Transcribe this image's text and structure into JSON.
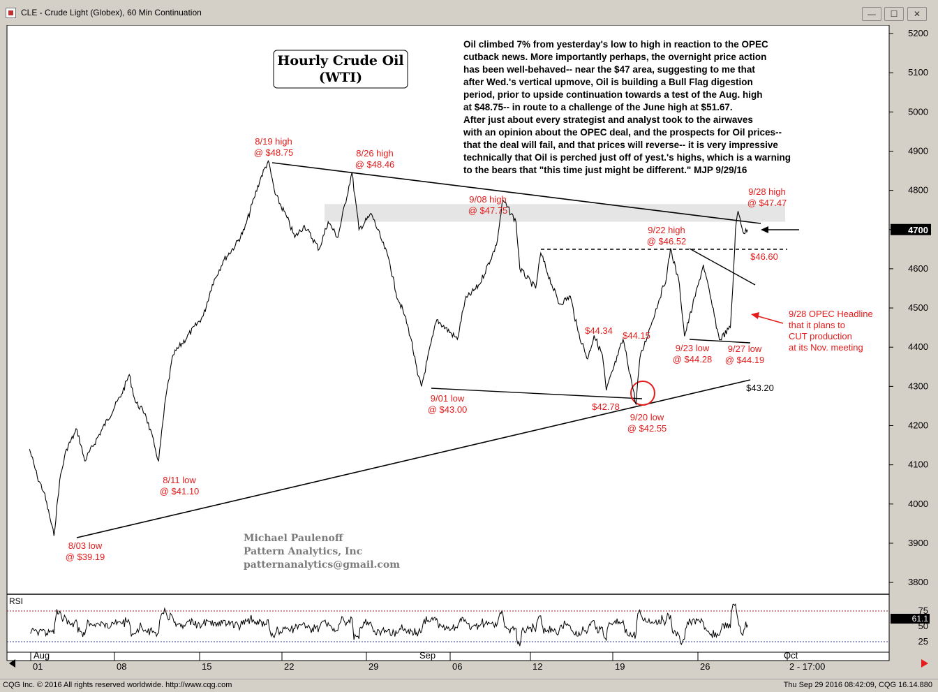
{
  "window": {
    "title": "CLE - Crude Light (Globex), 60 Min Continuation",
    "controls": {
      "minimize": "—",
      "maximize": "☐",
      "close": "✕"
    }
  },
  "footer": {
    "left": "CQG Inc. © 2016 All rights reserved worldwide. http://www.cqg.com",
    "right": "Thu Sep 29 2016 08:42:09, CQG 16.14.880"
  },
  "colors": {
    "annotation": "#e31b1b",
    "rsi_ref": "#9a1a2a",
    "rsi_ref_low": "#3a3a9a",
    "resistance_zone": "#d0d0d0"
  },
  "chart_data": {
    "type": "line",
    "title_box": [
      "Hourly Crude Oil",
      "(WTI)"
    ],
    "commentary": [
      "    Oil climbed 7% from yesterday's low to high in reaction to the OPEC",
      "cutback news. More importantly perhaps, the overnight price action",
      "has been well-behaved-- near the $47 area, suggesting to me that",
      "after Wed.'s vertical upmove, Oil is building a Bull Flag digestion",
      "period, prior to upside continuation towards a test of the Aug. high",
      "at $48.75-- in route to a challenge of the June high at $51.67.",
      "    After just about every strategist and analyst took to the airwaves",
      "with an opinion about the OPEC deal, and the prospects for Oil prices--",
      "that the deal will fail, and that prices will reverse-- it is very impressive",
      "technically that Oil is perched just off of yest.'s highs, which is a warning",
      "to the bears that \"this time just might be different.\"  MJP 9/29/16"
    ],
    "signature": [
      "Michael Paulenoff",
      "Pattern Analytics, Inc",
      "patternanalytics@gmail.com"
    ],
    "y_axis": {
      "range": [
        3750,
        5250
      ],
      "ticks": [
        3800,
        3900,
        4000,
        4100,
        4200,
        4300,
        4400,
        4500,
        4600,
        4700,
        4800,
        4900,
        5000,
        5100,
        5200
      ],
      "last_price_box": "4700"
    },
    "x_axis": {
      "month_labels": [
        "Aug",
        "Sep",
        "Oct"
      ],
      "day_labels": [
        "01",
        "08",
        "15",
        "22",
        "29",
        "06",
        "12",
        "19",
        "26",
        "2 - 17:00"
      ]
    },
    "rsi": {
      "label": "RSI",
      "ticks": [
        25,
        50,
        75
      ],
      "value_box": "61.1",
      "ref_high": 70,
      "ref_low": 30
    },
    "series": [
      {
        "points": [
          [
            "Aug 01 08:00",
            4140
          ],
          [
            "Aug 01 20:00",
            4070
          ],
          [
            "Aug 02 12:00",
            4030
          ],
          [
            "Aug 02 22:00",
            3960
          ],
          [
            "Aug 03 09:00",
            3919
          ],
          [
            "Aug 03 18:00",
            4060
          ],
          [
            "Aug 04 10:00",
            4140
          ],
          [
            "Aug 05 08:00",
            4190
          ],
          [
            "Aug 05 20:00",
            4110
          ],
          [
            "Aug 08 10:00",
            4280
          ],
          [
            "Aug 08 22:00",
            4330
          ],
          [
            "Aug 09 12:00",
            4260
          ],
          [
            "Aug 10 08:00",
            4230
          ],
          [
            "Aug 10 22:00",
            4150
          ],
          [
            "Aug 11 09:00",
            4110
          ],
          [
            "Aug 11 20:00",
            4270
          ],
          [
            "Aug 12 12:00",
            4380
          ],
          [
            "Aug 15 08:00",
            4480
          ],
          [
            "Aug 15 22:00",
            4560
          ],
          [
            "Aug 16 14:00",
            4620
          ],
          [
            "Aug 17 08:00",
            4660
          ],
          [
            "Aug 17 22:00",
            4700
          ],
          [
            "Aug 18 12:00",
            4780
          ],
          [
            "Aug 18 22:00",
            4830
          ],
          [
            "Aug 19 09:00",
            4875
          ],
          [
            "Aug 19 20:00",
            4790
          ],
          [
            "Aug 22 08:00",
            4730
          ],
          [
            "Aug 22 20:00",
            4680
          ],
          [
            "Aug 23 10:00",
            4710
          ],
          [
            "Aug 24 08:00",
            4650
          ],
          [
            "Aug 24 22:00",
            4720
          ],
          [
            "Aug 25 12:00",
            4680
          ],
          [
            "Aug 26 09:00",
            4846
          ],
          [
            "Aug 26 20:00",
            4700
          ],
          [
            "Aug 29 08:00",
            4740
          ],
          [
            "Aug 29 22:00",
            4680
          ],
          [
            "Aug 30 12:00",
            4620
          ],
          [
            "Aug 30 22:00",
            4540
          ],
          [
            "Aug 31 12:00",
            4480
          ],
          [
            "Aug 31 22:00",
            4420
          ],
          [
            "Sep 01 08:00",
            4330
          ],
          [
            "Sep 01 14:00",
            4300
          ],
          [
            "Sep 02 08:00",
            4430
          ],
          [
            "Sep 02 14:00",
            4470
          ],
          [
            "Sep 06 08:00",
            4420
          ],
          [
            "Sep 06 20:00",
            4520
          ],
          [
            "Sep 07 12:00",
            4560
          ],
          [
            "Sep 08 08:00",
            4660
          ],
          [
            "Sep 08 18:00",
            4775
          ],
          [
            "Sep 09 08:00",
            4720
          ],
          [
            "Sep 09 14:00",
            4600
          ],
          [
            "Sep 12 06:00",
            4550
          ],
          [
            "Sep 12 14:00",
            4640
          ],
          [
            "Sep 13 06:00",
            4560
          ],
          [
            "Sep 13 18:00",
            4510
          ],
          [
            "Sep 14 10:00",
            4530
          ],
          [
            "Sep 14 22:00",
            4440
          ],
          [
            "Sep 15 12:00",
            4370
          ],
          [
            "Sep 15 22:00",
            4430
          ],
          [
            "Sep 16 10:00",
            4380
          ],
          [
            "Sep 16 16:00",
            4290
          ],
          [
            "Sep 19 06:00",
            4380
          ],
          [
            "Sep 19 14:00",
            4420
          ],
          [
            "Sep 20 06:00",
            4290
          ],
          [
            "Sep 20 10:00",
            4255
          ],
          [
            "Sep 20 16:00",
            4370
          ],
          [
            "Sep 21 08:00",
            4450
          ],
          [
            "Sep 21 22:00",
            4520
          ],
          [
            "Sep 22 10:00",
            4580
          ],
          [
            "Sep 22 16:00",
            4652
          ],
          [
            "Sep 23 06:00",
            4560
          ],
          [
            "Sep 23 14:00",
            4428
          ],
          [
            "Sep 26 06:00",
            4560
          ],
          [
            "Sep 26 14:00",
            4610
          ],
          [
            "Sep 27 06:00",
            4480
          ],
          [
            "Sep 27 14:00",
            4419
          ],
          [
            "Sep 28 06:00",
            4450
          ],
          [
            "Sep 28 10:00",
            4560
          ],
          [
            "Sep 28 14:00",
            4700
          ],
          [
            "Sep 28 18:00",
            4747
          ],
          [
            "Sep 29 02:00",
            4690
          ],
          [
            "Sep 29 08:00",
            4700
          ]
        ]
      }
    ],
    "annotations": [
      {
        "lines": [
          "8/19 high",
          "@ $48.75"
        ]
      },
      {
        "lines": [
          "8/26 high",
          "@ $48.46"
        ]
      },
      {
        "lines": [
          "9/08 high",
          "@ $47.75"
        ]
      },
      {
        "lines": [
          "9/22 high",
          "@ $46.52"
        ]
      },
      {
        "lines": [
          "9/28 high",
          "@ $47.47"
        ]
      },
      {
        "lines": [
          "$46.60"
        ]
      },
      {
        "lines": [
          "8/03 low",
          "@ $39.19"
        ]
      },
      {
        "lines": [
          "8/11 low",
          "@ $41.10"
        ]
      },
      {
        "lines": [
          "9/01 low",
          "@ $43.00"
        ]
      },
      {
        "lines": [
          "$44.34"
        ]
      },
      {
        "lines": [
          "$44.15"
        ]
      },
      {
        "lines": [
          "$42.78"
        ]
      },
      {
        "lines": [
          "9/20 low",
          "@ $42.55"
        ]
      },
      {
        "lines": [
          "9/23 low",
          "@ $44.28"
        ]
      },
      {
        "lines": [
          "9/27 low",
          "@ $44.19"
        ]
      },
      {
        "lines": [
          "$43.20"
        ]
      },
      {
        "lines": [
          "9/28 OPEC Headline",
          "that it plans to",
          "CUT production",
          "at its Nov. meeting"
        ]
      }
    ]
  }
}
